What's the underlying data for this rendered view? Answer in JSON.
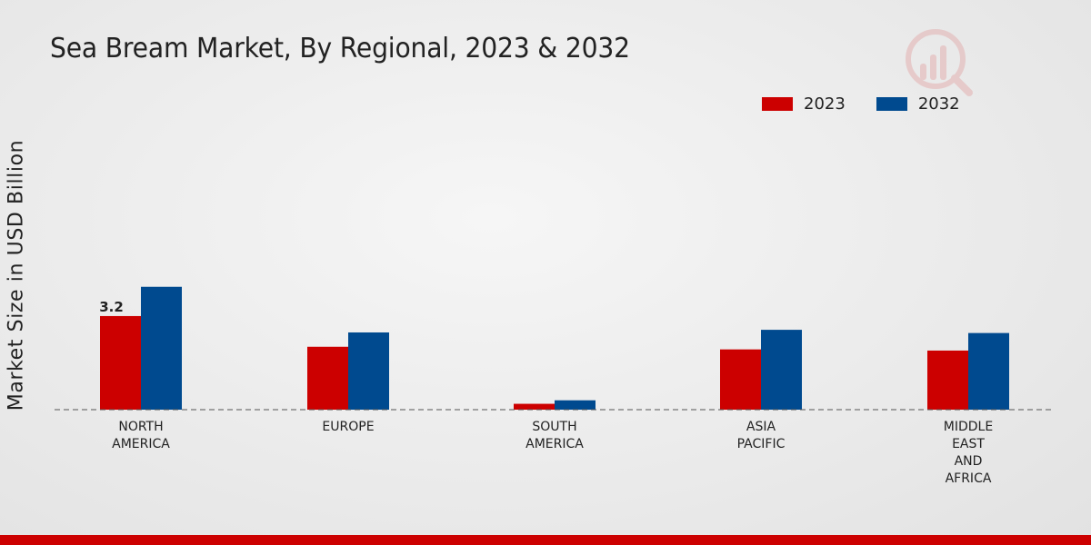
{
  "header": {
    "title": "Sea Bream Market, By Regional, 2023 & 2032"
  },
  "colors": {
    "series_2023": "#cc0000",
    "series_2032": "#004a8f",
    "bottom_bar": "#cc0000"
  },
  "logo": {
    "icon": "bar-chart-magnifier-icon"
  },
  "chart_data": {
    "type": "bar",
    "title": "Sea Bream Market, By Regional, 2023 & 2032",
    "xlabel": "",
    "ylabel": "Market Size in USD Billion",
    "ylim": [
      0,
      10.9
    ],
    "grid": false,
    "legend_position": "top-right",
    "categories": [
      "NORTH\nAMERICA",
      "EUROPE",
      "SOUTH\nAMERICA",
      "ASIA\nPACIFIC",
      "MIDDLE\nEAST\nAND\nAFRICA"
    ],
    "series": [
      {
        "name": "2023",
        "color": "#cc0000",
        "values": [
          3.2,
          2.15,
          0.2,
          2.06,
          2.02
        ]
      },
      {
        "name": "2032",
        "color": "#004a8f",
        "values": [
          4.2,
          2.64,
          0.32,
          2.73,
          2.62
        ]
      }
    ],
    "annotations": [
      {
        "series": 0,
        "category": 0,
        "label": "3.2"
      }
    ]
  }
}
